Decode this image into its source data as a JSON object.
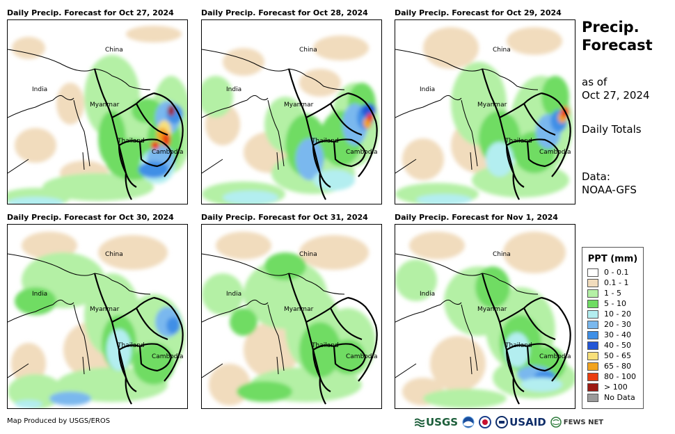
{
  "panels": [
    {
      "title": "Daily Precip. Forecast for Oct 27, 2024"
    },
    {
      "title": "Daily Precip. Forecast for Oct 28, 2024"
    },
    {
      "title": "Daily Precip. Forecast for Oct 29, 2024"
    },
    {
      "title": "Daily Precip. Forecast for Oct 30, 2024"
    },
    {
      "title": "Daily Precip. Forecast for Oct 31, 2024"
    },
    {
      "title": "Daily Precip. Forecast for Nov 1, 2024"
    }
  ],
  "map_labels": {
    "china": "China",
    "india": "India",
    "myanmar": "Myanmar",
    "thailand": "Thailand",
    "cambodia": "Cambodia"
  },
  "sidebar": {
    "title_line1": "Precip.",
    "title_line2": "Forecast",
    "asof_line1": "as of",
    "asof_line2": "Oct 27, 2024",
    "totals": "Daily Totals",
    "data_line1": "Data:",
    "data_line2": "NOAA-GFS"
  },
  "legend": {
    "title": "PPT (mm)",
    "items": [
      {
        "label": "0 - 0.1",
        "color": "#ffffff"
      },
      {
        "label": "0.1 - 1",
        "color": "#f1dcbd"
      },
      {
        "label": "1 - 5",
        "color": "#b4f0a5"
      },
      {
        "label": "5 - 10",
        "color": "#6fdc63"
      },
      {
        "label": "10 - 20",
        "color": "#b3eef0"
      },
      {
        "label": "20 - 30",
        "color": "#7ab8ee"
      },
      {
        "label": "30 - 40",
        "color": "#3f8fe6"
      },
      {
        "label": "40 - 50",
        "color": "#2356d6"
      },
      {
        "label": "50 - 65",
        "color": "#f8e07a"
      },
      {
        "label": "65 - 80",
        "color": "#f2a31f"
      },
      {
        "label": "80 - 100",
        "color": "#ea3d10"
      },
      {
        "label": "> 100",
        "color": "#9c1a14"
      },
      {
        "label": "No Data",
        "color": "#9a9a9a"
      }
    ]
  },
  "footer": {
    "credit": "Map Produced by USGS/EROS",
    "logos": {
      "usgs": "USGS",
      "usaid": "USAID",
      "fewsnet": "FEWS NET"
    }
  }
}
